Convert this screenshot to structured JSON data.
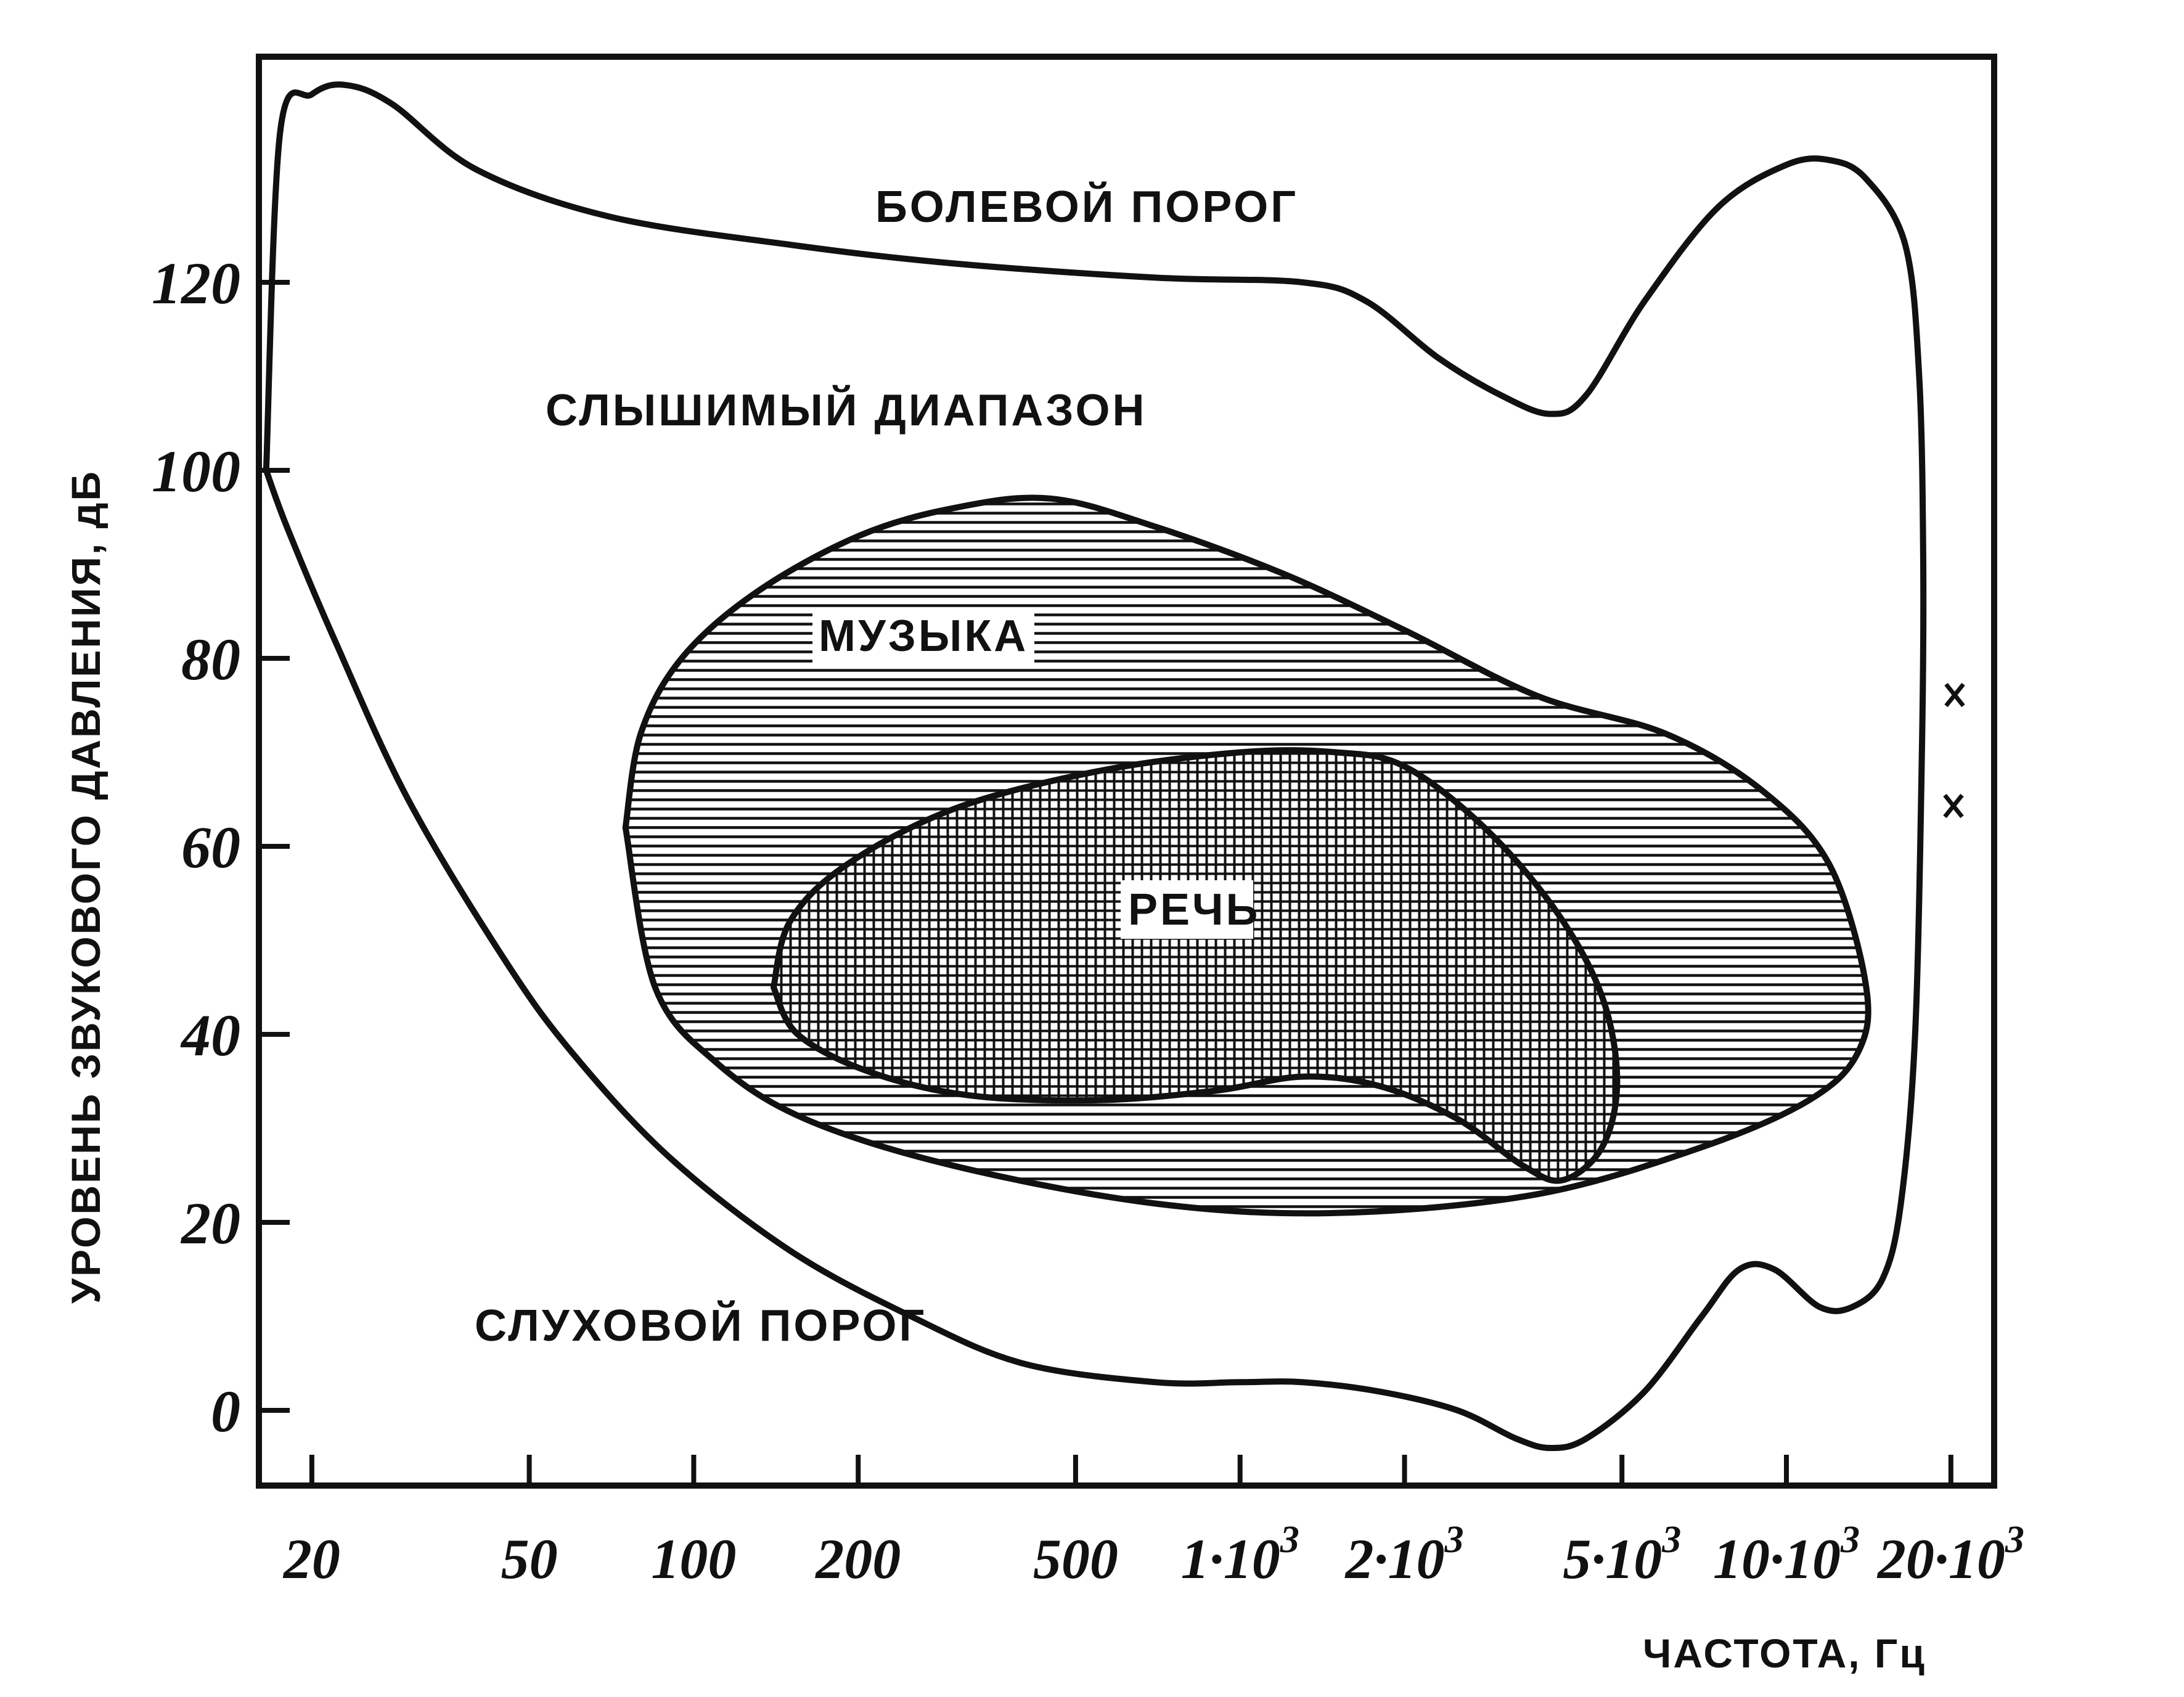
{
  "chart_data": {
    "type": "area",
    "xlabel": "ЧАСТОТА, Гц",
    "ylabel": "УРОВЕНЬ ЗВУКОВОГО ДАВЛЕНИЯ, дБ",
    "xscale": "log",
    "xlim": [
      16,
      24000
    ],
    "ylim": [
      -8,
      144
    ],
    "grid": false,
    "y_ticks": [
      {
        "value": 0,
        "label": "0"
      },
      {
        "value": 20,
        "label": "20"
      },
      {
        "value": 40,
        "label": "40"
      },
      {
        "value": 60,
        "label": "60"
      },
      {
        "value": 80,
        "label": "80"
      },
      {
        "value": 100,
        "label": "100"
      },
      {
        "value": 120,
        "label": "120"
      }
    ],
    "x_ticks": [
      {
        "value": 20,
        "label": "20",
        "sup": ""
      },
      {
        "value": 50,
        "label": "50",
        "sup": ""
      },
      {
        "value": 100,
        "label": "100",
        "sup": ""
      },
      {
        "value": 200,
        "label": "200",
        "sup": ""
      },
      {
        "value": 500,
        "label": "500",
        "sup": ""
      },
      {
        "value": 1000,
        "label": "1·10",
        "sup": "3"
      },
      {
        "value": 2000,
        "label": "2·10",
        "sup": "3"
      },
      {
        "value": 5000,
        "label": "5·10",
        "sup": "3"
      },
      {
        "value": 10000,
        "label": "10·10",
        "sup": "3"
      },
      {
        "value": 20000,
        "label": "20·10",
        "sup": "3"
      }
    ],
    "annotations": {
      "pain": "БОЛЕВОЙ ПОРОГ",
      "audible": "СЛЫШИМЫЙ ДИАПАЗОН",
      "music": "МУЗЫКА",
      "speech": "РЕЧЬ",
      "threshold": "СЛУХОВОЙ ПОРОГ"
    },
    "series": [
      {
        "id": "audible-range",
        "points": [
          [
            16.5,
            100
          ],
          [
            17.5,
            136
          ],
          [
            20,
            140
          ],
          [
            23,
            141
          ],
          [
            28,
            139
          ],
          [
            40,
            132
          ],
          [
            70,
            127
          ],
          [
            150,
            124
          ],
          [
            300,
            122
          ],
          [
            700,
            120.5
          ],
          [
            1300,
            120
          ],
          [
            1700,
            118
          ],
          [
            2300,
            112
          ],
          [
            3000,
            108
          ],
          [
            3700,
            106
          ],
          [
            4300,
            108
          ],
          [
            5500,
            118
          ],
          [
            7500,
            128
          ],
          [
            10000,
            132.5
          ],
          [
            12000,
            133
          ],
          [
            14000,
            131
          ],
          [
            16500,
            124
          ],
          [
            17500,
            110
          ],
          [
            17800,
            90
          ],
          [
            17700,
            70
          ],
          [
            17200,
            40
          ],
          [
            16200,
            22
          ],
          [
            15000,
            14
          ],
          [
            13200,
            11
          ],
          [
            11500,
            11
          ],
          [
            9500,
            15
          ],
          [
            8200,
            15
          ],
          [
            7000,
            10
          ],
          [
            5500,
            2
          ],
          [
            4300,
            -3
          ],
          [
            3700,
            -4
          ],
          [
            3200,
            -3
          ],
          [
            2500,
            0
          ],
          [
            1800,
            2
          ],
          [
            1300,
            3
          ],
          [
            1000,
            3
          ],
          [
            700,
            3
          ],
          [
            400,
            5
          ],
          [
            250,
            10
          ],
          [
            150,
            17
          ],
          [
            90,
            27
          ],
          [
            60,
            38
          ],
          [
            45,
            48
          ],
          [
            30,
            65
          ],
          [
            22,
            82
          ],
          [
            18,
            94
          ],
          [
            16.5,
            100
          ]
        ]
      },
      {
        "id": "music",
        "points": [
          [
            75,
            62
          ],
          [
            80,
            72
          ],
          [
            95,
            80
          ],
          [
            130,
            87
          ],
          [
            200,
            93
          ],
          [
            300,
            96
          ],
          [
            450,
            97
          ],
          [
            700,
            94
          ],
          [
            1200,
            89
          ],
          [
            2000,
            83
          ],
          [
            3500,
            76
          ],
          [
            6000,
            72
          ],
          [
            9000,
            66
          ],
          [
            12000,
            58
          ],
          [
            14000,
            45
          ],
          [
            13500,
            38
          ],
          [
            11000,
            33
          ],
          [
            7000,
            28
          ],
          [
            3500,
            23
          ],
          [
            1500,
            21
          ],
          [
            700,
            22
          ],
          [
            300,
            26
          ],
          [
            160,
            31
          ],
          [
            110,
            37
          ],
          [
            85,
            45
          ],
          [
            75,
            62
          ]
        ]
      },
      {
        "id": "speech",
        "points": [
          [
            140,
            45
          ],
          [
            150,
            52
          ],
          [
            190,
            58
          ],
          [
            300,
            64
          ],
          [
            550,
            68
          ],
          [
            1000,
            70
          ],
          [
            1500,
            70
          ],
          [
            2000,
            68.5
          ],
          [
            2800,
            62
          ],
          [
            3800,
            53
          ],
          [
            4600,
            44
          ],
          [
            4900,
            35
          ],
          [
            4600,
            28
          ],
          [
            3900,
            24.5
          ],
          [
            3300,
            26
          ],
          [
            2500,
            31
          ],
          [
            1800,
            34.5
          ],
          [
            1300,
            35.5
          ],
          [
            900,
            34
          ],
          [
            550,
            33
          ],
          [
            320,
            33.5
          ],
          [
            210,
            36
          ],
          [
            155,
            40
          ],
          [
            140,
            45
          ]
        ]
      }
    ]
  }
}
